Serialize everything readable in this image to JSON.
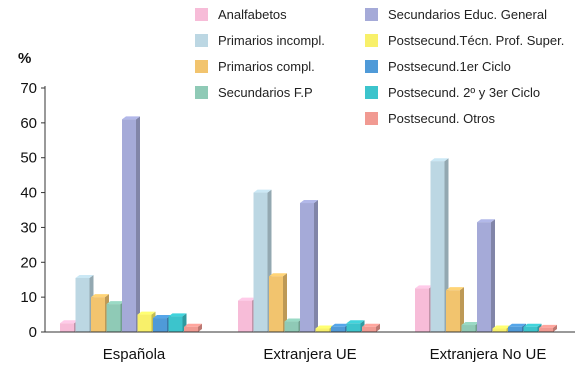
{
  "chart_data": {
    "type": "bar",
    "ylabel": "%",
    "ylim": [
      0,
      70
    ],
    "yticks": [
      0,
      10,
      20,
      30,
      40,
      50,
      60,
      70
    ],
    "grid": false,
    "legend_placement": "top",
    "categories": [
      "Española",
      "Extranjera UE",
      "Extranjera No UE"
    ],
    "series": [
      {
        "name": "Analfabetos",
        "color": "#f7bcd8",
        "values": [
          2.5,
          9,
          12.5
        ]
      },
      {
        "name": "Primarios incompl.",
        "color": "#bcd7e3",
        "values": [
          15.5,
          40,
          49
        ]
      },
      {
        "name": "Primarios compl.",
        "color": "#f2c46e",
        "values": [
          10,
          16,
          12
        ]
      },
      {
        "name": "Secundarios F.P",
        "color": "#8fcab6",
        "values": [
          8,
          3,
          2
        ]
      },
      {
        "name": "Secundarios Educ. General",
        "color": "#a5aad8",
        "values": [
          61,
          37,
          31.5
        ]
      },
      {
        "name": "Postsecund.Técn. Prof. Super.",
        "color": "#f8f06a",
        "values": [
          5,
          1,
          1
        ]
      },
      {
        "name": "Postsecund.1er Ciclo",
        "color": "#4f9ad8",
        "values": [
          4,
          1.5,
          1.5
        ]
      },
      {
        "name": "Postsecund. 2º y 3er Ciclo",
        "color": "#3cc4cc",
        "values": [
          4.5,
          2.5,
          1.5
        ]
      },
      {
        "name": "Postsecund. Otros",
        "color": "#f19a92",
        "values": [
          1.5,
          1.5,
          1.2
        ]
      }
    ]
  }
}
